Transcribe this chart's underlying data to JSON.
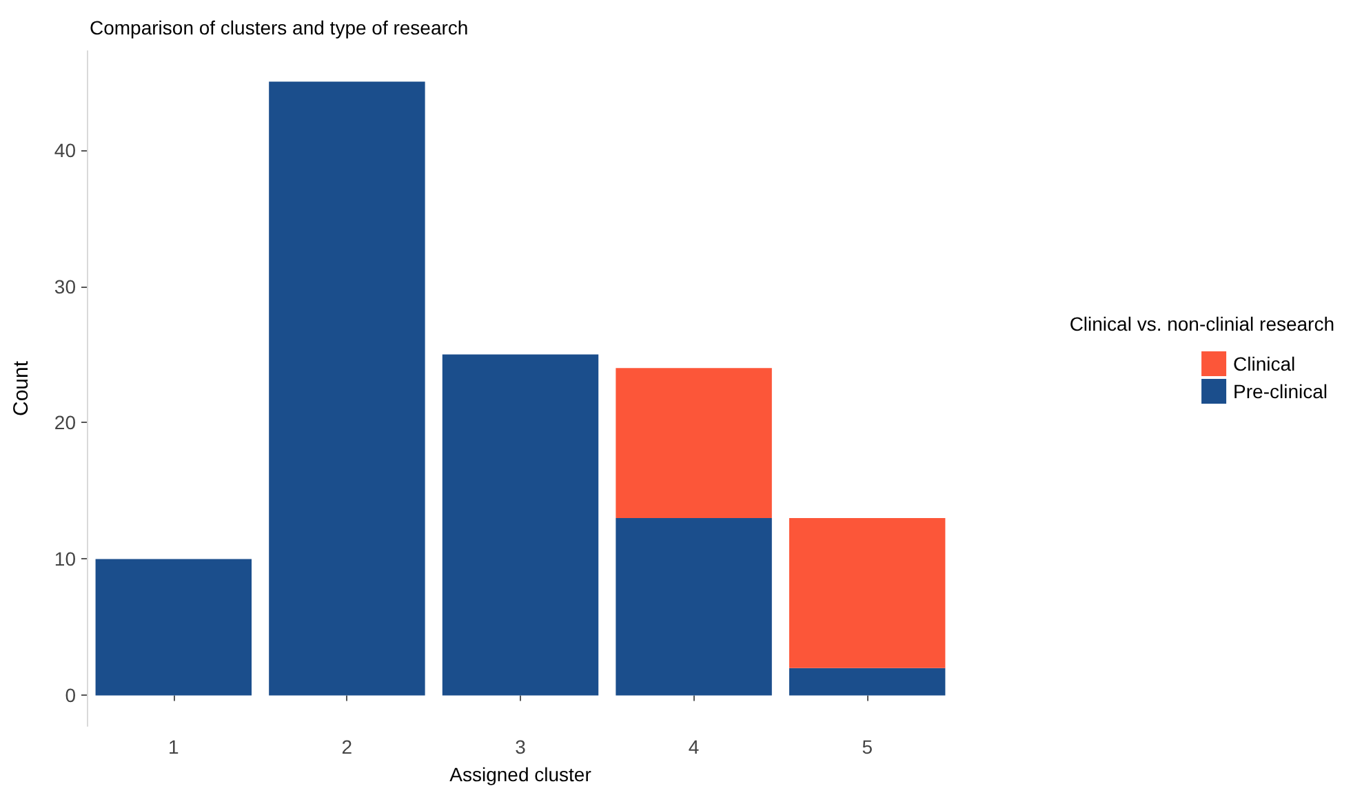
{
  "chart_data": {
    "type": "bar",
    "title": "Comparison of clusters and type of research",
    "xlabel": "Assigned cluster",
    "ylabel": "Count",
    "legend_title": "Clinical vs. non-clinial research",
    "categories": [
      "1",
      "2",
      "3",
      "4",
      "5"
    ],
    "stacked": true,
    "series": [
      {
        "name": "Pre-clinical",
        "color": "#1b4e8c",
        "values": [
          10,
          45,
          25,
          13,
          2
        ]
      },
      {
        "name": "Clinical",
        "color": "#fc5639",
        "values": [
          null,
          null,
          null,
          11,
          11
        ]
      }
    ],
    "yticks": [
      0,
      10,
      20,
      30,
      40
    ],
    "ylim": [
      -2.25,
      47.25
    ],
    "grid": false,
    "legend": "right"
  }
}
